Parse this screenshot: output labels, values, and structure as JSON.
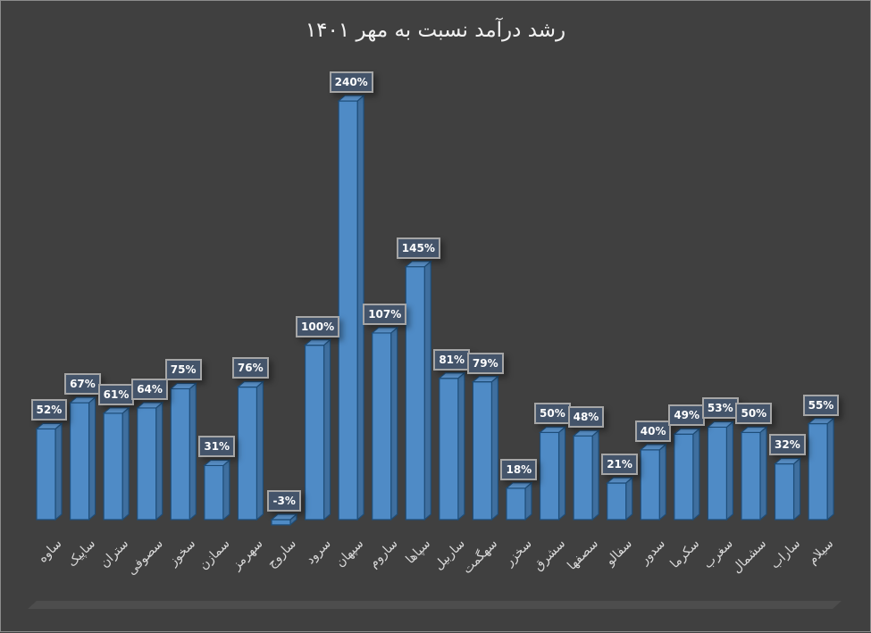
{
  "chart_data": {
    "type": "bar",
    "variant": "3d-column",
    "title": "رشد درآمد نسبت به مهر ۱۴۰۱",
    "xlabel": "",
    "ylabel": "",
    "grid": false,
    "legend": null,
    "value_format": "percent",
    "categories": [
      "ساوه",
      "ساپیک",
      "ستران",
      "سصوفی",
      "سخوز",
      "سمازن",
      "سهرمز",
      "ساروج",
      "سرود",
      "سپهان",
      "ساروم",
      "سپاها",
      "ساربیل",
      "سهگمت",
      "سخزر",
      "سشرق",
      "سصفها",
      "سفالو",
      "سدور",
      "سکرما",
      "سغرب",
      "سشمال",
      "ساراب",
      "سیلام"
    ],
    "values": [
      52,
      67,
      61,
      64,
      75,
      31,
      76,
      -3,
      100,
      240,
      107,
      145,
      81,
      79,
      18,
      50,
      48,
      21,
      40,
      49,
      53,
      50,
      32,
      55
    ],
    "data_labels": [
      "52%",
      "67%",
      "61%",
      "64%",
      "75%",
      "31%",
      "76%",
      "-3%",
      "100%",
      "240%",
      "107%",
      "145%",
      "81%",
      "79%",
      "18%",
      "50%",
      "48%",
      "21%",
      "40%",
      "49%",
      "53%",
      "50%",
      "32%",
      "55%"
    ],
    "ylim": [
      -10,
      250
    ],
    "colors": {
      "background": "#404040",
      "bar_front": "#4f8bc6",
      "bar_side": "#3f6f9f",
      "bar_top": "#5b93cc",
      "bar_edge": "#1f4e79",
      "label_fill": "#44546a",
      "label_border": "#a6a6a6",
      "label_text": "#ffffff",
      "title_text": "#f2f2f2",
      "axis_text": "#d9d9d9",
      "floor": "#4d4d4d"
    }
  }
}
